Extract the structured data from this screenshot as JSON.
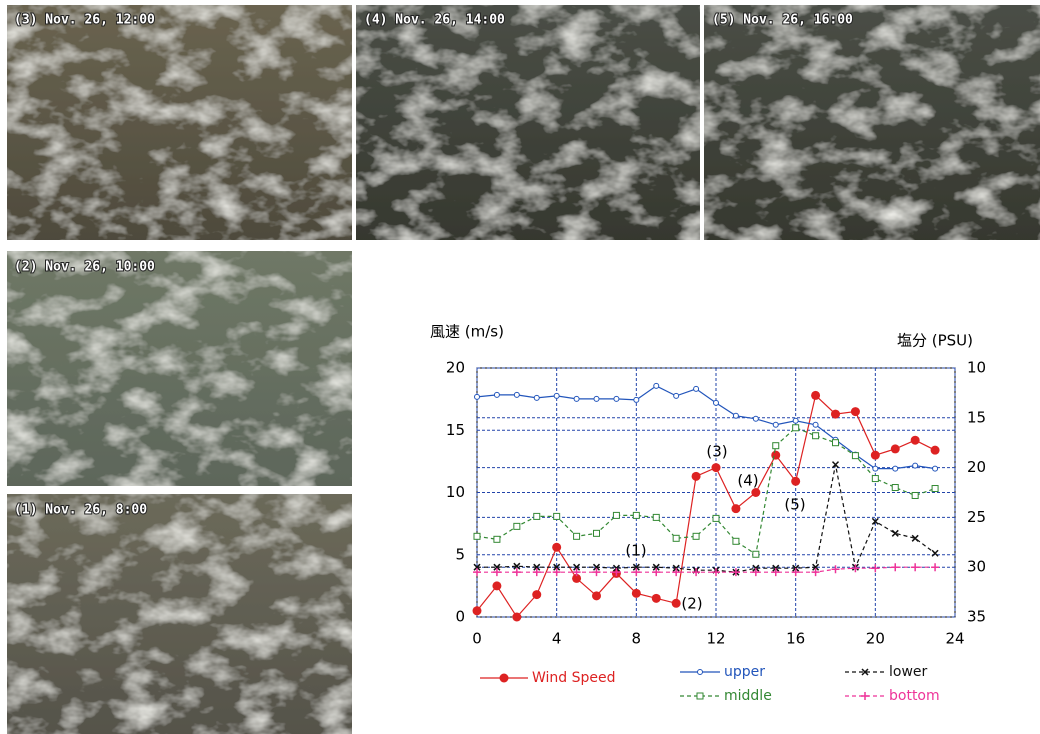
{
  "panels": [
    {
      "label": "(3) Nov. 26, 12:00"
    },
    {
      "label": "(4) Nov. 26, 14:00"
    },
    {
      "label": "(5) Nov. 26, 16:00"
    },
    {
      "label": "(2) Nov. 26, 10:00"
    },
    {
      "label": "(1) Nov. 26, 8:00"
    }
  ],
  "chart_data": {
    "type": "line",
    "y_label": "風速 (m/s)",
    "y2_label": "塩分 (PSU)",
    "x": [
      0,
      1,
      2,
      3,
      4,
      5,
      6,
      7,
      8,
      9,
      10,
      11,
      12,
      13,
      14,
      15,
      16,
      17,
      18,
      19,
      20,
      21,
      22,
      23
    ],
    "xlim": [
      0,
      24
    ],
    "xticks": [
      0,
      4,
      8,
      12,
      16,
      20,
      24
    ],
    "ylim": [
      0,
      20
    ],
    "yticks": [
      0,
      5,
      10,
      15,
      20
    ],
    "y2lim": [
      35,
      10
    ],
    "y2ticks": [
      10,
      15,
      20,
      25,
      30,
      35
    ],
    "grid": true,
    "grid_color": "#2244aa",
    "annotations": [
      "(1)",
      "(2)",
      "(3)",
      "(4)",
      "(5)"
    ],
    "series": [
      {
        "name": "Wind Speed",
        "color": "#dd2222",
        "marker": "dot",
        "dash": false,
        "values": [
          0.5,
          2.5,
          0,
          1.8,
          5.6,
          3.1,
          1.7,
          3.5,
          1.9,
          1.5,
          1.1,
          11.3,
          12,
          8.7,
          10,
          13,
          10.9,
          17.8,
          16.3,
          16.5,
          13,
          13.5,
          14.2,
          13.4
        ]
      },
      {
        "name": "upper",
        "color": "#2255bb",
        "marker": "ring",
        "dash": false,
        "axis": "y2",
        "values": [
          12.9,
          12.7,
          12.7,
          13,
          12.8,
          13.1,
          13.1,
          13.1,
          13.2,
          11.8,
          12.8,
          12.1,
          13.5,
          14.8,
          15.1,
          15.7,
          15.3,
          15.7,
          17.2,
          18.7,
          20.1,
          20.1,
          19.8,
          20.1
        ]
      },
      {
        "name": "middle",
        "color": "#338833",
        "marker": "square",
        "dash": true,
        "axis": "y2",
        "values": [
          26.9,
          27.2,
          25.9,
          24.9,
          24.9,
          26.9,
          26.6,
          24.8,
          24.8,
          25,
          27.1,
          26.9,
          25.1,
          27.4,
          28.7,
          17.8,
          16,
          16.8,
          17.5,
          18.8,
          21.1,
          22,
          22.8,
          22.1
        ]
      },
      {
        "name": "lower",
        "color": "#111111",
        "marker": "cross",
        "dash": true,
        "axis": "y2",
        "values": [
          30,
          30,
          29.9,
          30,
          30,
          30,
          30,
          30.1,
          30,
          30,
          30.1,
          30.3,
          30.3,
          30.5,
          30.1,
          30.1,
          30.1,
          30,
          19.7,
          30,
          25.4,
          26.6,
          27.1,
          28.6
        ]
      },
      {
        "name": "bottom",
        "color": "#ee3399",
        "marker": "plus",
        "dash": true,
        "axis": "y2",
        "values": [
          30.5,
          30.5,
          30.5,
          30.5,
          30.5,
          30.5,
          30.5,
          30.5,
          30.5,
          30.5,
          30.5,
          30.5,
          30.5,
          30.5,
          30.5,
          30.5,
          30.5,
          30.5,
          30.2,
          30.1,
          30.1,
          30,
          30,
          30
        ]
      }
    ]
  }
}
